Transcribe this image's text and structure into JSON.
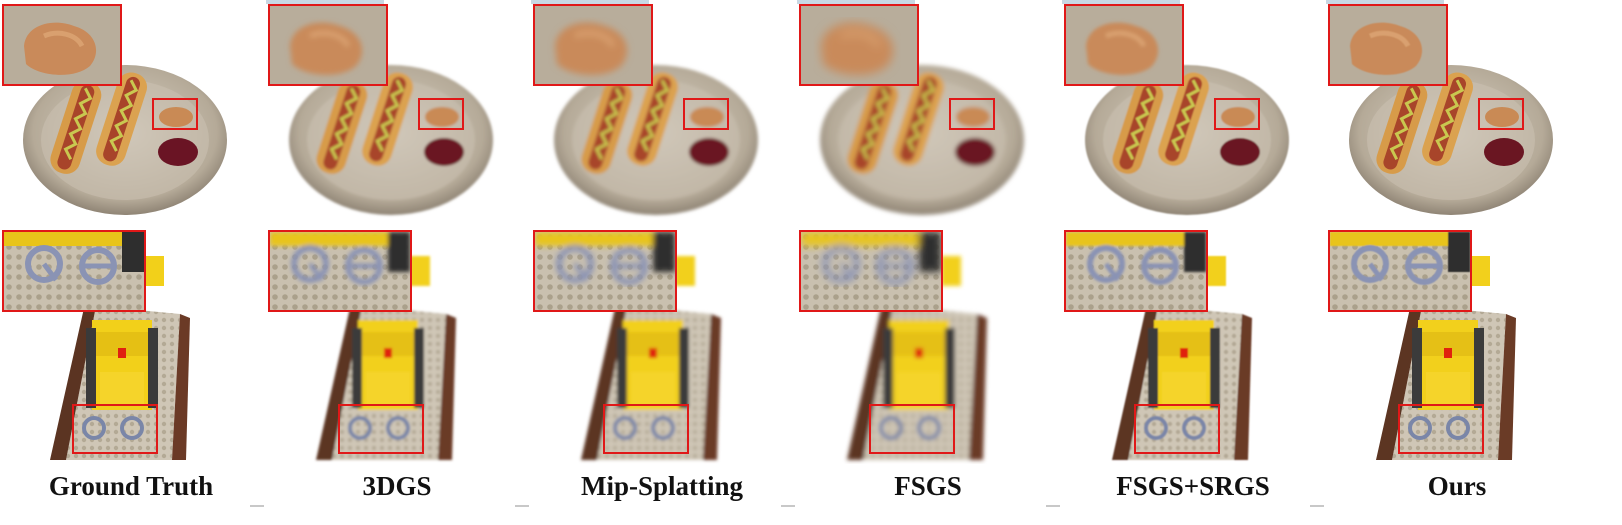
{
  "figure": {
    "columns": [
      {
        "id": "gt",
        "caption": "Ground Truth"
      },
      {
        "id": "3dgs",
        "caption": "3DGS"
      },
      {
        "id": "mip",
        "caption": "Mip-Splatting"
      },
      {
        "id": "fsgs",
        "caption": "FSGS"
      },
      {
        "id": "fsgs-srgs",
        "caption": "FSGS+SRGS"
      },
      {
        "id": "ours",
        "caption": "Ours"
      }
    ],
    "highlight_color": "#e01818"
  }
}
